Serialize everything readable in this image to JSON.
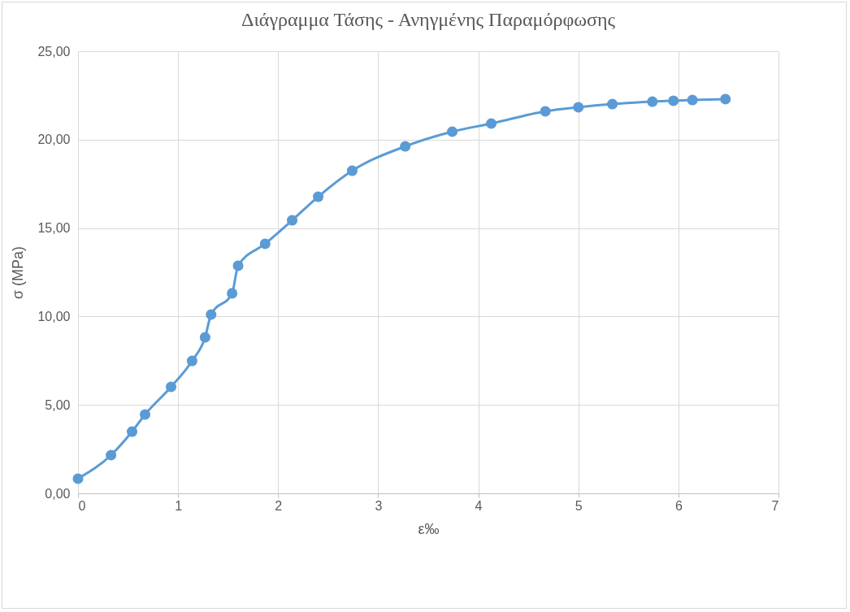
{
  "chart_data": {
    "type": "line",
    "title": "Διάγραμμα Τάσης - Ανηγμένης Παραμόρφωσης",
    "xlabel": "ε‰",
    "ylabel": "σ (MPa)",
    "series": [
      {
        "color": "#5b9bd5",
        "x": [
          0,
          0.33,
          0.54,
          0.67,
          0.93,
          1.14,
          1.27,
          1.33,
          1.54,
          1.6,
          1.87,
          2.14,
          2.4,
          2.74,
          3.27,
          3.74,
          4.13,
          4.67,
          5.0,
          5.34,
          5.74,
          5.95,
          6.14,
          6.47
        ],
        "values": [
          0.83,
          2.16,
          3.49,
          4.46,
          6.02,
          7.49,
          8.82,
          10.11,
          11.31,
          12.87,
          14.11,
          15.44,
          16.77,
          18.24,
          19.62,
          20.45,
          20.91,
          21.6,
          21.83,
          22.01,
          22.15,
          22.2,
          22.24,
          22.29
        ]
      }
    ],
    "xlim": [
      0,
      7
    ],
    "xticks": [
      0,
      1,
      2,
      3,
      4,
      5,
      6,
      7
    ],
    "ylim": [
      0,
      25
    ],
    "yticks": [
      {
        "value": 0,
        "label": "0,00"
      },
      {
        "value": 5,
        "label": "5,00"
      },
      {
        "value": 10,
        "label": "10,00"
      },
      {
        "value": 15,
        "label": "15,00"
      },
      {
        "value": 20,
        "label": "20,00"
      },
      {
        "value": 25,
        "label": "25,00"
      }
    ],
    "grid": true,
    "marker": "circle",
    "line_style": "solid"
  }
}
